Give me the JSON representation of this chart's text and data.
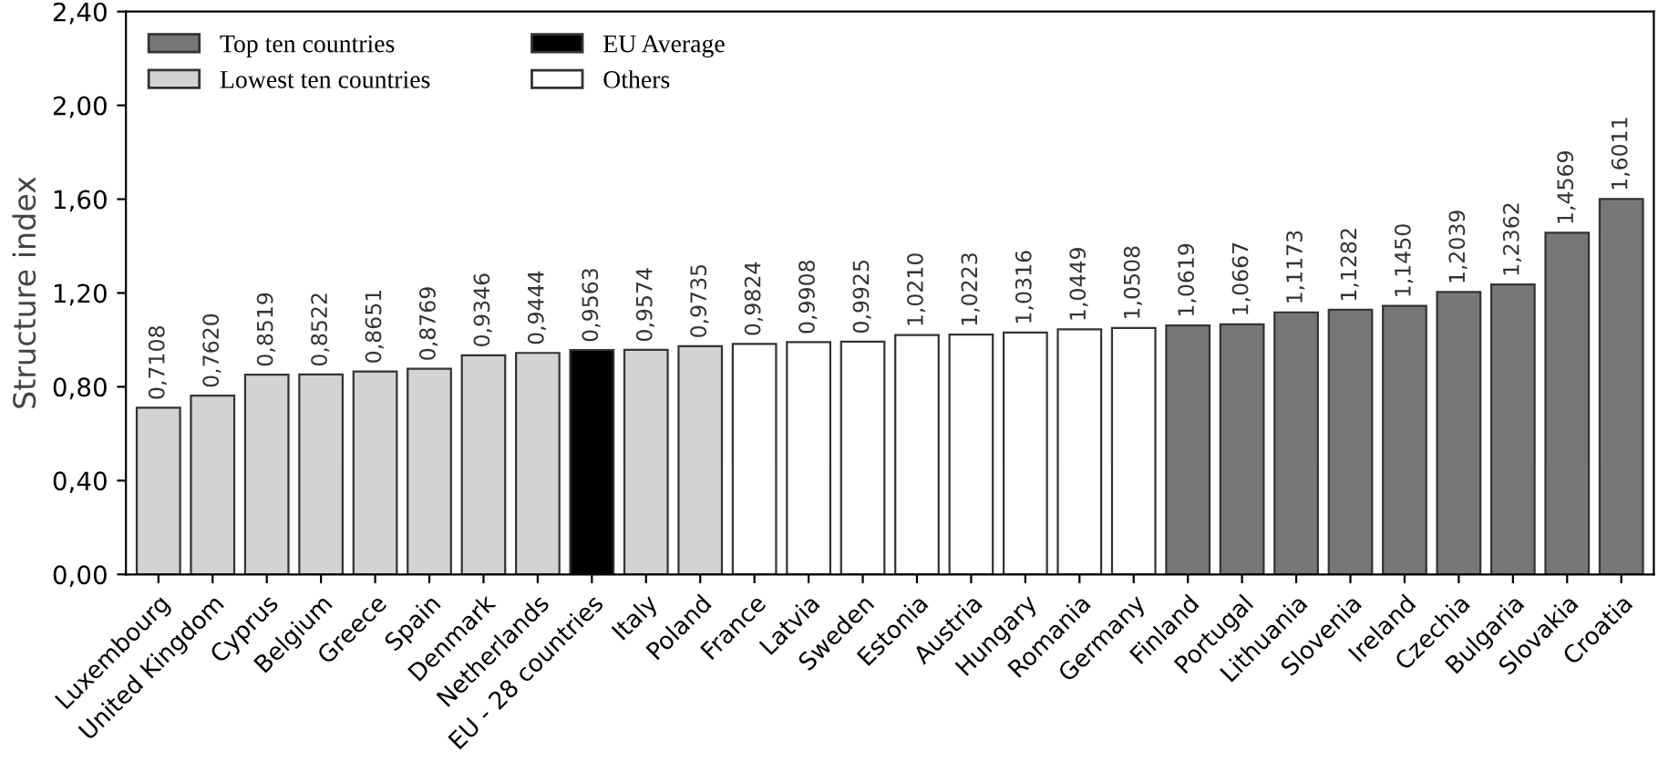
{
  "chart_data": {
    "type": "bar",
    "ylabel": "Structure index",
    "categories": [
      "Luxembourg",
      "United Kingdom",
      "Cyprus",
      "Belgium",
      "Greece",
      "Spain",
      "Denmark",
      "Netherlands",
      "EU - 28 countries",
      "Italy",
      "Poland",
      "France",
      "Latvia",
      "Sweden",
      "Estonia",
      "Austria",
      "Hungary",
      "Romania",
      "Germany",
      "Finland",
      "Portugal",
      "Lithuania",
      "Slovenia",
      "Ireland",
      "Czechia",
      "Bulgaria",
      "Slovakia",
      "Croatia"
    ],
    "series": [
      {
        "name": "Top ten countries",
        "color": "#777777",
        "values": [
          null,
          null,
          null,
          null,
          null,
          null,
          null,
          null,
          null,
          null,
          null,
          null,
          null,
          null,
          null,
          null,
          null,
          null,
          null,
          1.0619,
          1.0667,
          1.1173,
          1.1282,
          1.145,
          1.2039,
          1.2362,
          1.4569,
          1.6011
        ],
        "value_labels": [
          null,
          null,
          null,
          null,
          null,
          null,
          null,
          null,
          null,
          null,
          null,
          null,
          null,
          null,
          null,
          null,
          null,
          null,
          null,
          "1,0619",
          "1,0667",
          "1,1173",
          "1,1282",
          "1,1450",
          "1,2039",
          "1,2362",
          "1,4569",
          "1,6011"
        ]
      },
      {
        "name": "Lowest ten countries",
        "color": "#d3d3d3",
        "values": [
          0.7108,
          0.762,
          0.8519,
          0.8522,
          0.8651,
          0.8769,
          0.9346,
          0.9444,
          null,
          0.9574,
          0.9735,
          null,
          null,
          null,
          null,
          null,
          null,
          null,
          null,
          null,
          null,
          null,
          null,
          null,
          null,
          null,
          null,
          null
        ],
        "value_labels": [
          "0,7108",
          "0,7620",
          "0,8519",
          "0,8522",
          "0,8651",
          "0,8769",
          "0,9346",
          "0,9444",
          null,
          "0,9574",
          "0,9735",
          null,
          null,
          null,
          null,
          null,
          null,
          null,
          null,
          null,
          null,
          null,
          null,
          null,
          null,
          null,
          null,
          null
        ]
      },
      {
        "name": "EU Average",
        "color": "#000000",
        "values": [
          null,
          null,
          null,
          null,
          null,
          null,
          null,
          null,
          0.9563,
          null,
          null,
          null,
          null,
          null,
          null,
          null,
          null,
          null,
          null,
          null,
          null,
          null,
          null,
          null,
          null,
          null,
          null,
          null
        ],
        "value_labels": [
          null,
          null,
          null,
          null,
          null,
          null,
          null,
          null,
          "0,9563",
          null,
          null,
          null,
          null,
          null,
          null,
          null,
          null,
          null,
          null,
          null,
          null,
          null,
          null,
          null,
          null,
          null,
          null,
          null
        ]
      },
      {
        "name": "Others",
        "color": "#ffffff",
        "values": [
          null,
          null,
          null,
          null,
          null,
          null,
          null,
          null,
          null,
          null,
          null,
          0.9824,
          0.9908,
          0.9925,
          1.021,
          1.0223,
          1.0316,
          1.0449,
          1.0508,
          null,
          null,
          null,
          null,
          null,
          null,
          null,
          null,
          null
        ],
        "value_labels": [
          null,
          null,
          null,
          null,
          null,
          null,
          null,
          null,
          null,
          null,
          null,
          "0,9824",
          "0,9908",
          "0,9925",
          "1,0210",
          "1,0223",
          "1,0316",
          "1,0449",
          "1,0508",
          null,
          null,
          null,
          null,
          null,
          null,
          null,
          null,
          null
        ]
      }
    ],
    "ylim": [
      0,
      2.4
    ],
    "yticks": [
      {
        "value": 0,
        "label": "0,00"
      },
      {
        "value": 0.4,
        "label": "0,40"
      },
      {
        "value": 0.8,
        "label": "0,80"
      },
      {
        "value": 1.2,
        "label": "1,20"
      },
      {
        "value": 1.6,
        "label": "1,60"
      },
      {
        "value": 2.0,
        "label": "2,00"
      },
      {
        "value": 2.4,
        "label": "2,40"
      }
    ],
    "legend": "top left",
    "grid": false
  }
}
